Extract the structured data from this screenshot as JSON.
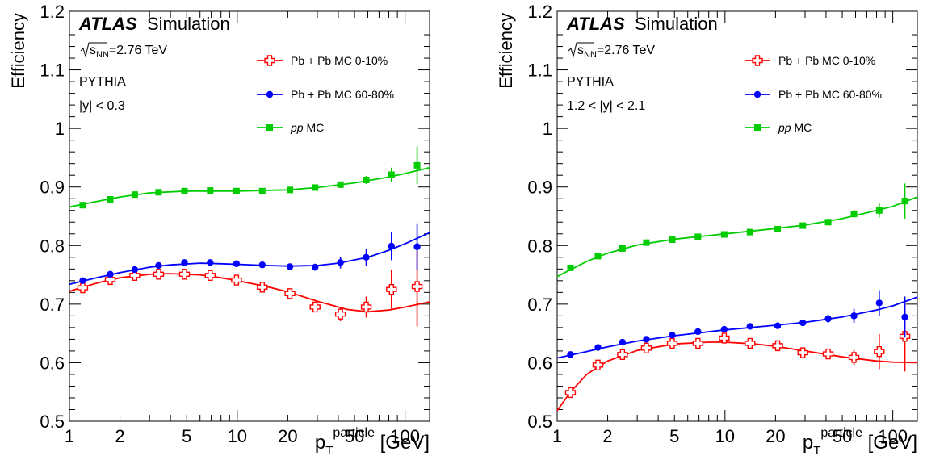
{
  "chart_data": [
    {
      "type": "scatter",
      "title": "",
      "xlabel": "p_T^particle [GeV]",
      "ylabel": "Efficiency",
      "xscale": "log",
      "xlim": [
        1,
        140
      ],
      "ylim": [
        0.5,
        1.2
      ],
      "xticks": [
        1,
        2,
        5,
        10,
        20,
        50,
        100
      ],
      "yticks": [
        0.5,
        0.6,
        0.7,
        0.8,
        0.9,
        1.0,
        1.1,
        1.2
      ],
      "ytick_labels": [
        "0.5",
        "0.6",
        "0.7",
        "0.8",
        "0.9",
        "1",
        "1.1",
        "1.2"
      ],
      "atlas_label": "ATLAS",
      "simulation_label": "Simulation",
      "annotations": [
        "√s_NN=2.76 TeV",
        "PYTHIA",
        "|y| < 0.3"
      ],
      "legend_position": "top-right",
      "series": [
        {
          "name": "Pb + Pb MC 0-10%",
          "color": "#ff0000",
          "marker": "open-cross",
          "x": [
            1.2,
            1.75,
            2.45,
            3.4,
            4.85,
            6.9,
            9.9,
            14.1,
            20.6,
            29.1,
            41.2,
            58.7,
            83,
            118
          ],
          "y": [
            0.728,
            0.742,
            0.749,
            0.751,
            0.751,
            0.749,
            0.741,
            0.729,
            0.718,
            0.695,
            0.683,
            0.695,
            0.725,
            0.73
          ],
          "yerr": [
            0.005,
            0.004,
            0.004,
            0.004,
            0.004,
            0.004,
            0.004,
            0.005,
            0.005,
            0.006,
            0.012,
            0.018,
            0.033,
            0.068
          ],
          "fit": [
            [
              1,
              0.722
            ],
            [
              1.5,
              0.737
            ],
            [
              2,
              0.745
            ],
            [
              3,
              0.751
            ],
            [
              4,
              0.752
            ],
            [
              6,
              0.75
            ],
            [
              8,
              0.745
            ],
            [
              10,
              0.74
            ],
            [
              15,
              0.73
            ],
            [
              20,
              0.721
            ],
            [
              30,
              0.705
            ],
            [
              45,
              0.691
            ],
            [
              60,
              0.687
            ],
            [
              80,
              0.69
            ],
            [
              100,
              0.695
            ],
            [
              140,
              0.704
            ]
          ]
        },
        {
          "name": "Pb + Pb MC 60-80%",
          "color": "#0000ff",
          "marker": "filled-circle",
          "x": [
            1.2,
            1.75,
            2.45,
            3.4,
            4.85,
            6.9,
            9.9,
            14.1,
            20.6,
            29.1,
            41.2,
            58.7,
            83,
            118
          ],
          "y": [
            0.74,
            0.751,
            0.759,
            0.766,
            0.771,
            0.771,
            0.769,
            0.767,
            0.764,
            0.763,
            0.771,
            0.78,
            0.799,
            0.798
          ],
          "yerr": [
            0.003,
            0.003,
            0.003,
            0.003,
            0.003,
            0.003,
            0.003,
            0.003,
            0.004,
            0.006,
            0.01,
            0.015,
            0.024,
            0.04
          ],
          "fit": [
            [
              1,
              0.734
            ],
            [
              1.5,
              0.746
            ],
            [
              2,
              0.754
            ],
            [
              3,
              0.763
            ],
            [
              4,
              0.767
            ],
            [
              6,
              0.77
            ],
            [
              8,
              0.769
            ],
            [
              10,
              0.768
            ],
            [
              15,
              0.766
            ],
            [
              20,
              0.765
            ],
            [
              30,
              0.766
            ],
            [
              40,
              0.77
            ],
            [
              60,
              0.78
            ],
            [
              80,
              0.792
            ],
            [
              100,
              0.803
            ],
            [
              140,
              0.822
            ]
          ]
        },
        {
          "name": "pp MC",
          "color": "#00cc00",
          "marker": "filled-square",
          "x": [
            1.2,
            1.75,
            2.45,
            3.4,
            4.85,
            6.9,
            9.9,
            14.1,
            20.6,
            29.1,
            41.2,
            58.7,
            83,
            118
          ],
          "y": [
            0.869,
            0.879,
            0.887,
            0.891,
            0.893,
            0.894,
            0.893,
            0.893,
            0.895,
            0.899,
            0.904,
            0.912,
            0.921,
            0.937
          ],
          "yerr": [
            0.003,
            0.003,
            0.003,
            0.003,
            0.003,
            0.003,
            0.003,
            0.003,
            0.003,
            0.004,
            0.005,
            0.007,
            0.012,
            0.032
          ],
          "fit": [
            [
              1,
              0.866
            ],
            [
              1.5,
              0.876
            ],
            [
              2,
              0.883
            ],
            [
              3,
              0.89
            ],
            [
              5,
              0.893
            ],
            [
              10,
              0.893
            ],
            [
              20,
              0.895
            ],
            [
              30,
              0.899
            ],
            [
              50,
              0.907
            ],
            [
              80,
              0.917
            ],
            [
              100,
              0.923
            ],
            [
              140,
              0.933
            ]
          ]
        }
      ]
    },
    {
      "type": "scatter",
      "title": "",
      "xlabel": "p_T^particle [GeV]",
      "ylabel": "Efficiency",
      "xscale": "log",
      "xlim": [
        1,
        140
      ],
      "ylim": [
        0.5,
        1.2
      ],
      "xticks": [
        1,
        2,
        5,
        10,
        20,
        50,
        100
      ],
      "yticks": [
        0.5,
        0.6,
        0.7,
        0.8,
        0.9,
        1.0,
        1.1,
        1.2
      ],
      "ytick_labels": [
        "0.5",
        "0.6",
        "0.7",
        "0.8",
        "0.9",
        "1",
        "1.1",
        "1.2"
      ],
      "atlas_label": "ATLAS",
      "simulation_label": "Simulation",
      "annotations": [
        "√s_NN=2.76 TeV",
        "PYTHIA",
        "1.2 < |y| < 2.1"
      ],
      "legend_position": "top-right",
      "series": [
        {
          "name": "Pb + Pb MC 0-10%",
          "color": "#ff0000",
          "marker": "open-cross",
          "x": [
            1.2,
            1.75,
            2.45,
            3.4,
            4.85,
            6.9,
            9.9,
            14.1,
            20.6,
            29.1,
            41.2,
            58.7,
            83,
            118
          ],
          "y": [
            0.549,
            0.596,
            0.614,
            0.625,
            0.633,
            0.633,
            0.642,
            0.633,
            0.629,
            0.617,
            0.615,
            0.609,
            0.619,
            0.645
          ],
          "yerr": [
            0.004,
            0.004,
            0.004,
            0.004,
            0.004,
            0.004,
            0.004,
            0.005,
            0.005,
            0.007,
            0.009,
            0.013,
            0.03,
            0.06
          ],
          "fit": [
            [
              1,
              0.518
            ],
            [
              1.2,
              0.55
            ],
            [
              1.5,
              0.58
            ],
            [
              2,
              0.603
            ],
            [
              3,
              0.621
            ],
            [
              5,
              0.632
            ],
            [
              8,
              0.635
            ],
            [
              10,
              0.635
            ],
            [
              15,
              0.632
            ],
            [
              20,
              0.628
            ],
            [
              30,
              0.62
            ],
            [
              50,
              0.61
            ],
            [
              80,
              0.603
            ],
            [
              100,
              0.601
            ],
            [
              140,
              0.6
            ]
          ]
        },
        {
          "name": "Pb + Pb MC 60-80%",
          "color": "#0000ff",
          "marker": "filled-circle",
          "x": [
            1.2,
            1.75,
            2.45,
            3.4,
            4.85,
            6.9,
            9.9,
            14.1,
            20.6,
            29.1,
            41.2,
            58.7,
            83,
            118
          ],
          "y": [
            0.614,
            0.626,
            0.635,
            0.64,
            0.647,
            0.653,
            0.657,
            0.662,
            0.663,
            0.668,
            0.675,
            0.68,
            0.702,
            0.678
          ],
          "yerr": [
            0.003,
            0.003,
            0.003,
            0.003,
            0.003,
            0.003,
            0.003,
            0.003,
            0.003,
            0.004,
            0.007,
            0.012,
            0.022,
            0.035
          ],
          "fit": [
            [
              1,
              0.608
            ],
            [
              1.5,
              0.619
            ],
            [
              2,
              0.627
            ],
            [
              3,
              0.637
            ],
            [
              5,
              0.646
            ],
            [
              10,
              0.656
            ],
            [
              20,
              0.664
            ],
            [
              30,
              0.669
            ],
            [
              50,
              0.678
            ],
            [
              80,
              0.69
            ],
            [
              100,
              0.697
            ],
            [
              140,
              0.712
            ]
          ]
        },
        {
          "name": "pp MC",
          "color": "#00cc00",
          "marker": "filled-square",
          "x": [
            1.2,
            1.75,
            2.45,
            3.4,
            4.85,
            6.9,
            9.9,
            14.1,
            20.6,
            29.1,
            41.2,
            58.7,
            83,
            118
          ],
          "y": [
            0.762,
            0.782,
            0.795,
            0.805,
            0.81,
            0.815,
            0.819,
            0.823,
            0.828,
            0.834,
            0.84,
            0.854,
            0.86,
            0.876
          ],
          "yerr": [
            0.003,
            0.003,
            0.003,
            0.003,
            0.003,
            0.003,
            0.003,
            0.003,
            0.003,
            0.004,
            0.005,
            0.007,
            0.012,
            0.03
          ],
          "fit": [
            [
              1,
              0.747
            ],
            [
              1.5,
              0.773
            ],
            [
              2,
              0.787
            ],
            [
              3,
              0.801
            ],
            [
              5,
              0.811
            ],
            [
              10,
              0.82
            ],
            [
              20,
              0.829
            ],
            [
              30,
              0.835
            ],
            [
              50,
              0.846
            ],
            [
              80,
              0.86
            ],
            [
              100,
              0.867
            ],
            [
              140,
              0.883
            ]
          ]
        }
      ]
    }
  ]
}
